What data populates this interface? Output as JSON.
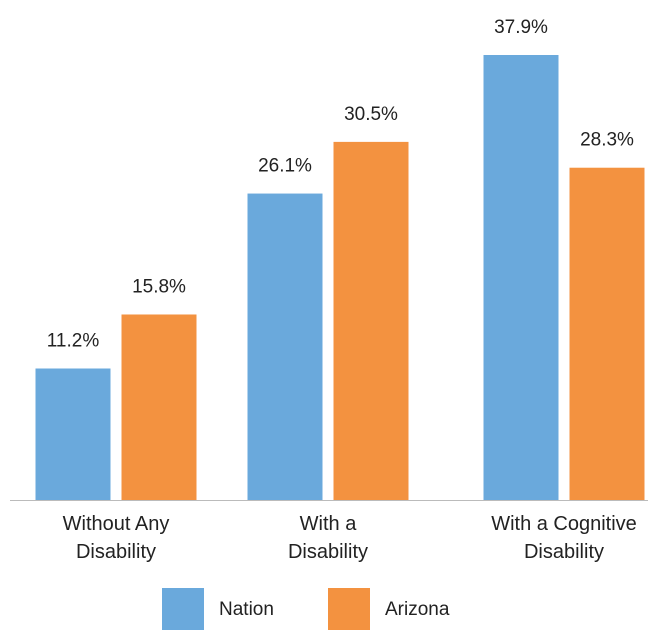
{
  "chart_data": {
    "type": "bar",
    "categories": [
      "Without Any\nDisability",
      "With a\nDisability",
      "With a Cognitive\nDisability"
    ],
    "series": [
      {
        "name": "Nation",
        "color": "#6aa9dc",
        "values": [
          11.2,
          26.1,
          37.9
        ],
        "value_labels": [
          "11.2%",
          "26.1%",
          "37.9%"
        ]
      },
      {
        "name": "Arizona",
        "color": "#f39240",
        "values": [
          15.8,
          30.5,
          28.3
        ],
        "value_labels": [
          "15.8%",
          "30.5%",
          "28.3%"
        ]
      }
    ]
  }
}
